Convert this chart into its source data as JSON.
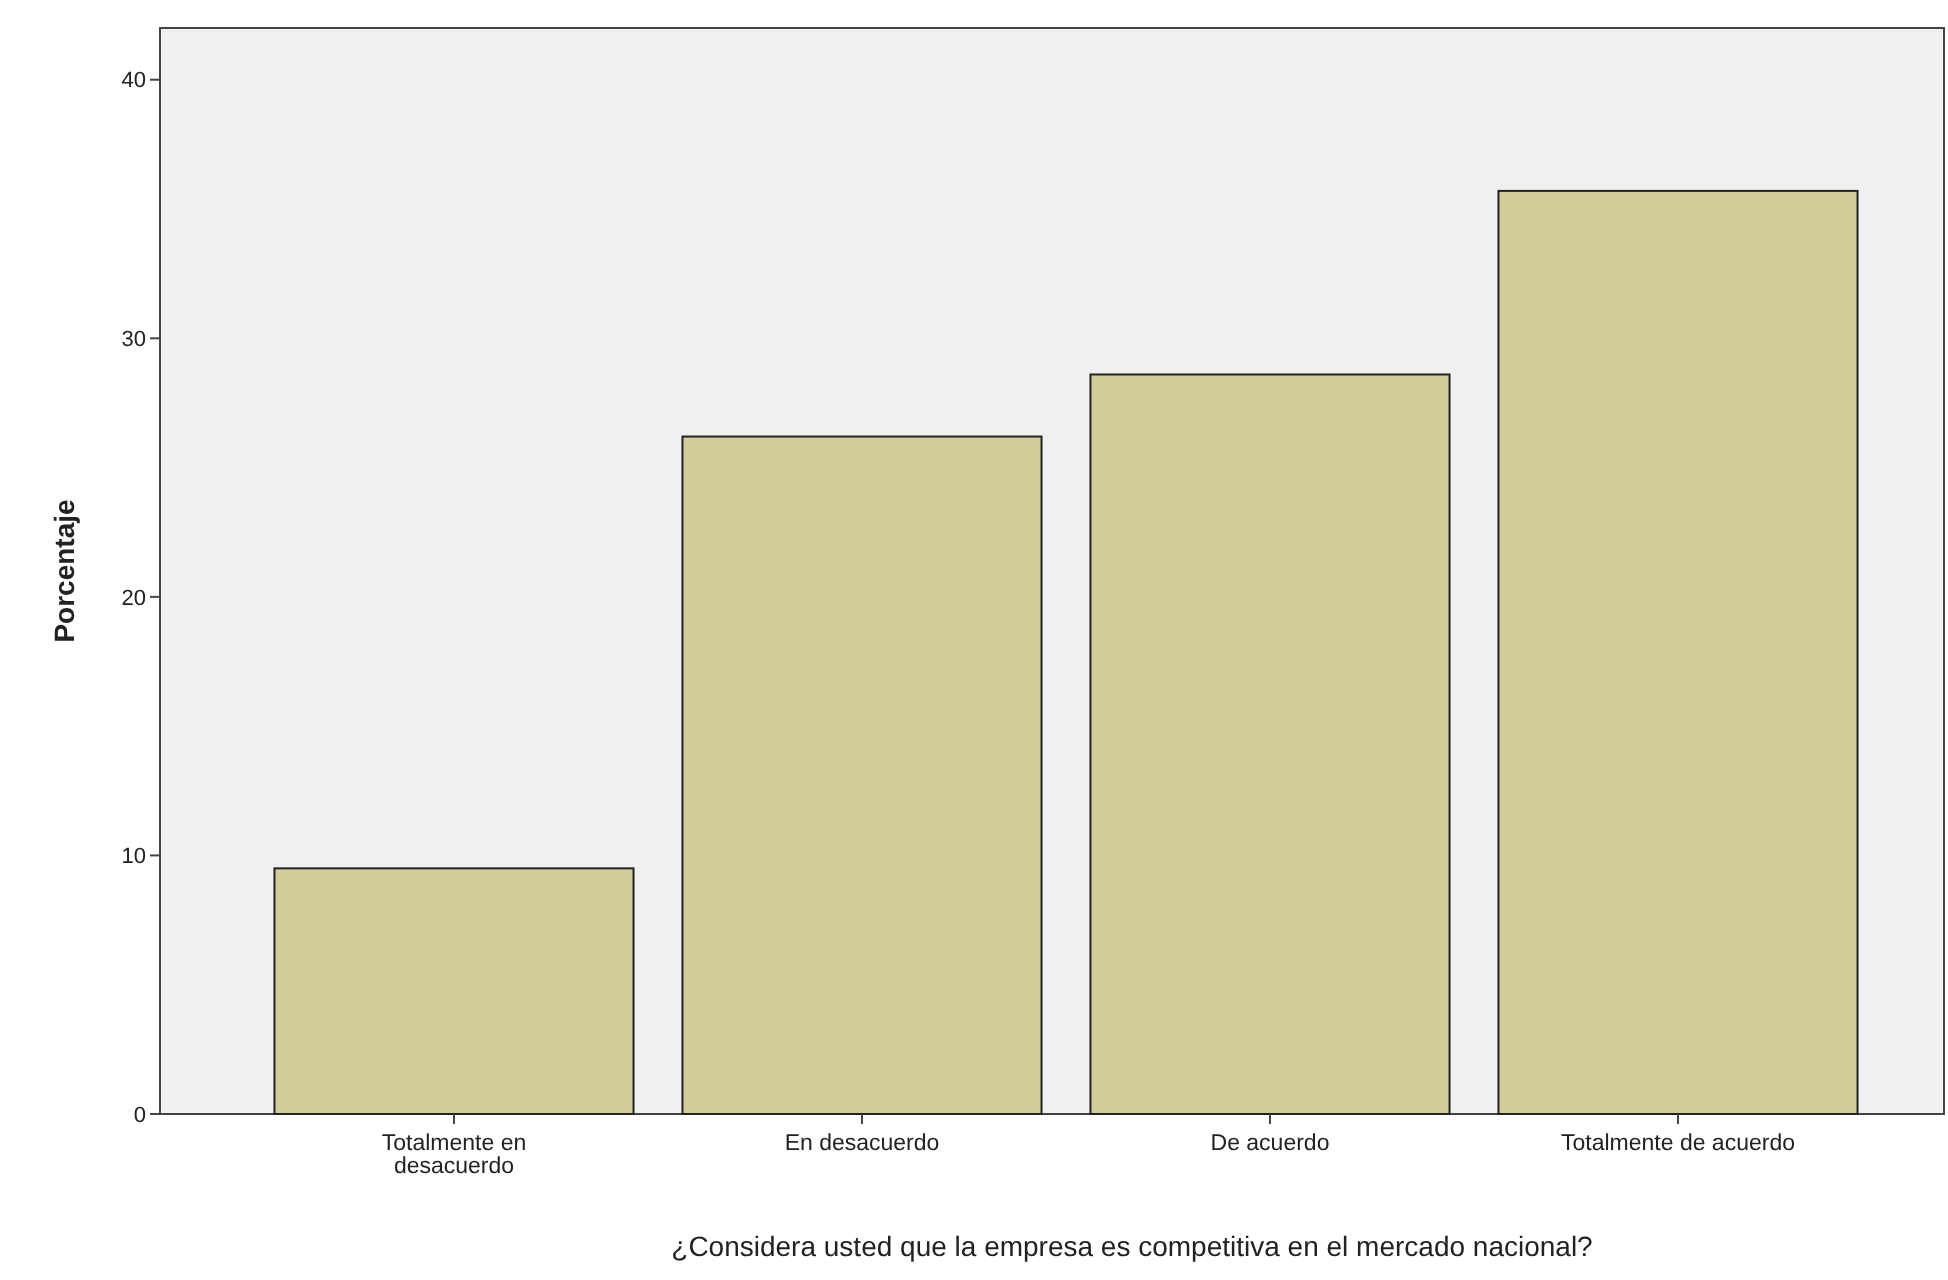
{
  "chart_data": {
    "type": "bar",
    "xlabel": "¿Considera usted que la empresa es competitiva en el mercado nacional?",
    "ylabel": "Porcentaje",
    "categories": [
      "Totalmente en desacuerdo",
      "En desacuerdo",
      "De acuerdo",
      "Totalmente de acuerdo"
    ],
    "values": [
      9.5,
      26.2,
      28.6,
      35.7
    ],
    "color": "#d3ce97",
    "ylim": [
      0,
      42
    ],
    "yticks": [
      0,
      10,
      20,
      30,
      40
    ],
    "grid": false
  }
}
